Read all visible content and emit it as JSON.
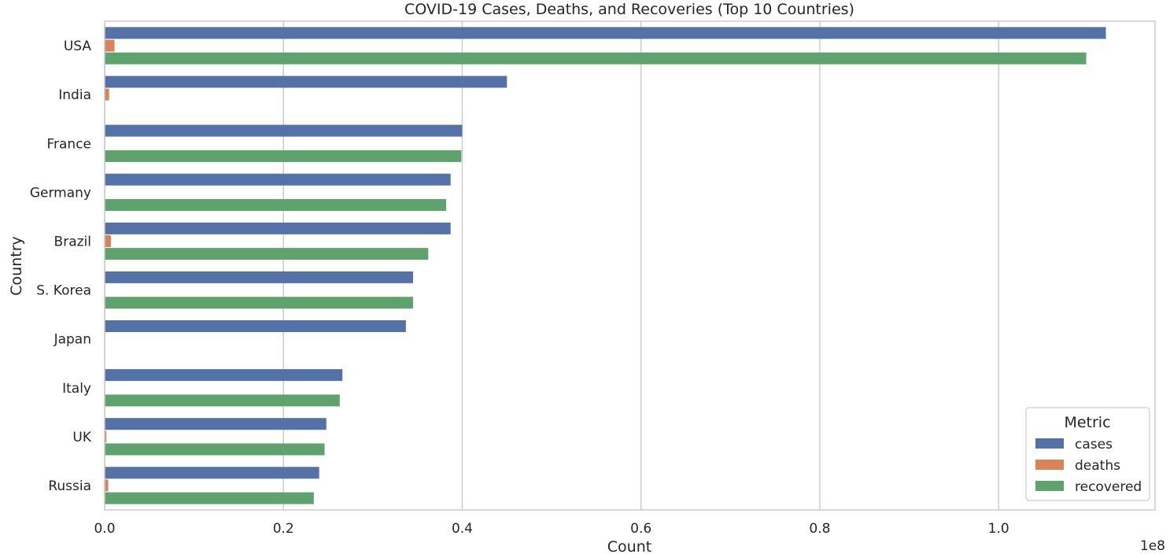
{
  "chart_data": {
    "type": "bar",
    "orientation": "horizontal",
    "title": "COVID-19 Cases, Deaths, and Recoveries (Top 10 Countries)",
    "xlabel": "Count",
    "ylabel": "Country",
    "x_scale_note": "1e8",
    "xlim": [
      0,
      1.175
    ],
    "x_ticks": [
      0.0,
      0.2,
      0.4,
      0.6,
      0.8,
      1.0
    ],
    "x_tick_labels": [
      "0.0",
      "0.2",
      "0.4",
      "0.6",
      "0.8",
      "1.0"
    ],
    "grid": true,
    "legend": {
      "title": "Metric",
      "placement": "lower right"
    },
    "categories": [
      "USA",
      "India",
      "France",
      "Germany",
      "Brazil",
      "S. Korea",
      "Japan",
      "Italy",
      "UK",
      "Russia"
    ],
    "series": [
      {
        "name": "cases",
        "color": "#5572a8",
        "values": [
          1.12,
          0.45,
          0.4,
          0.387,
          0.387,
          0.345,
          0.337,
          0.266,
          0.248,
          0.24
        ]
      },
      {
        "name": "deaths",
        "color": "#d98458",
        "values": [
          0.011,
          0.005,
          0.0,
          0.0,
          0.007,
          0.0,
          0.0,
          0.0,
          0.002,
          0.004
        ]
      },
      {
        "name": "recovered",
        "color": "#5ea26e",
        "values": [
          1.098,
          0.0,
          0.399,
          0.382,
          0.362,
          0.345,
          0.0,
          0.263,
          0.246,
          0.234
        ]
      }
    ]
  }
}
